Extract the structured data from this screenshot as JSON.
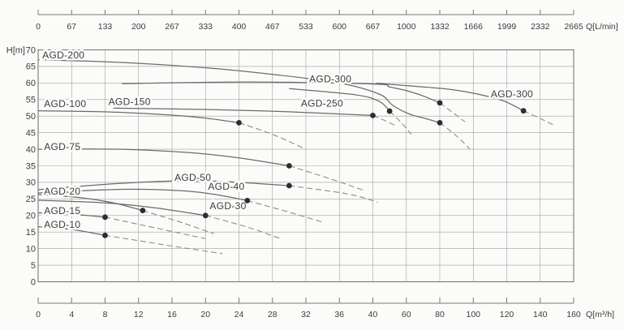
{
  "figure": {
    "bg": "#fbfbf9",
    "curve_color": "#6b6b6b",
    "dash_color": "#8c8c8c",
    "grid_color": "#9f9f9f",
    "frame_color": "#787878",
    "dot_color": "#2d2d2d",
    "text_color": "#3c3c3c"
  },
  "chart_data": {
    "type": "line",
    "title": "",
    "grid": true,
    "axes": {
      "top": {
        "unit": "Q[L/min]",
        "ticks": [
          "0",
          "67",
          "133",
          "200",
          "267",
          "333",
          "400",
          "467",
          "533",
          "600",
          "667",
          "1000",
          "1332",
          "1666",
          "1999",
          "2332",
          "2665"
        ]
      },
      "bottom": {
        "unit": "Q[m³/h]",
        "ticks": [
          "0",
          "4",
          "8",
          "12",
          "16",
          "20",
          "24",
          "28",
          "32",
          "36",
          "40",
          "60",
          "80",
          "100",
          "120",
          "140",
          "160"
        ],
        "values": [
          0,
          4,
          8,
          12,
          16,
          20,
          24,
          28,
          32,
          36,
          40,
          60,
          80,
          100,
          120,
          140,
          160
        ],
        "note": "piecewise scale: 4 m3/h per division up to 40, then 20 m3/h per division"
      },
      "left": {
        "unit": "H[m]",
        "min": 0,
        "max": 70,
        "step": 5,
        "ticks": [
          "70",
          "65",
          "60",
          "55",
          "50",
          "45",
          "40",
          "35",
          "30",
          "25",
          "20",
          "15",
          "10",
          "5",
          "0"
        ]
      }
    },
    "series": [
      {
        "id": "agd-10",
        "name": "AGD-10",
        "label_at": [
          0.7,
          17.2
        ],
        "solid": [
          [
            0,
            16.6
          ],
          [
            4,
            15.8
          ],
          [
            8,
            14
          ]
        ],
        "dashed": [
          [
            8,
            14
          ],
          [
            13,
            12
          ],
          [
            18,
            10
          ],
          [
            22,
            8.5
          ]
        ],
        "point": [
          8,
          14
        ]
      },
      {
        "id": "agd-15",
        "name": "AGD-15",
        "label_at": [
          0.7,
          21.4
        ],
        "solid": [
          [
            0,
            20.8
          ],
          [
            4,
            20.4
          ],
          [
            8,
            19.5
          ]
        ],
        "dashed": [
          [
            8,
            19.5
          ],
          [
            13,
            16.8
          ],
          [
            20,
            13
          ]
        ],
        "point": [
          8,
          19.5
        ]
      },
      {
        "id": "agd-20",
        "name": "AGD-20",
        "label_at": [
          0.7,
          27.3
        ],
        "solid": [
          [
            0,
            26.3
          ],
          [
            5,
            25.4
          ],
          [
            9,
            23.8
          ],
          [
            12.5,
            21.5
          ]
        ],
        "dashed": [
          [
            12.5,
            21.5
          ],
          [
            17,
            18
          ],
          [
            21,
            14.5
          ]
        ],
        "point": [
          12.5,
          21.5
        ]
      },
      {
        "id": "agd-30",
        "name": "AGD-30",
        "label_at": [
          20.5,
          22.9
        ],
        "solid": [
          [
            0,
            24.6
          ],
          [
            8,
            23.8
          ],
          [
            14,
            22.3
          ],
          [
            20,
            20
          ]
        ],
        "dashed": [
          [
            20,
            20
          ],
          [
            25,
            16.5
          ],
          [
            29,
            13
          ]
        ],
        "point": [
          20,
          20
        ]
      },
      {
        "id": "agd-40",
        "name": "AGD-40",
        "label_at": [
          20.3,
          28.8
        ],
        "solid": [
          [
            0,
            26.8
          ],
          [
            10,
            27.9
          ],
          [
            17,
            27.5
          ],
          [
            21,
            26.4
          ],
          [
            25,
            24.5
          ]
        ],
        "dashed": [
          [
            25,
            24.5
          ],
          [
            30,
            21
          ],
          [
            34,
            18
          ]
        ],
        "point": [
          25,
          24.5
        ]
      },
      {
        "id": "agd-50",
        "name": "AGD-50",
        "label_at": [
          16.3,
          31.5
        ],
        "solid": [
          [
            0,
            27.8
          ],
          [
            8,
            29.4
          ],
          [
            16,
            30.4
          ],
          [
            22,
            30.3
          ],
          [
            30,
            29
          ]
        ],
        "dashed": [
          [
            30,
            29
          ],
          [
            37,
            26.5
          ],
          [
            43,
            24
          ]
        ],
        "point": [
          30,
          29
        ]
      },
      {
        "id": "agd-75",
        "name": "AGD-75",
        "label_at": [
          0.7,
          40.7
        ],
        "solid": [
          [
            0,
            40
          ],
          [
            10,
            40
          ],
          [
            18,
            39
          ],
          [
            24,
            37.4
          ],
          [
            30,
            35
          ]
        ],
        "dashed": [
          [
            30,
            35
          ],
          [
            35,
            31
          ],
          [
            39,
            27.5
          ]
        ],
        "point": [
          30,
          35
        ]
      },
      {
        "id": "agd-100",
        "name": "AGD-100",
        "label_at": [
          0.7,
          53.7
        ],
        "solid": [
          [
            0,
            51.6
          ],
          [
            8,
            51.3
          ],
          [
            16,
            50.3
          ],
          [
            20,
            49.4
          ],
          [
            24,
            48
          ]
        ],
        "dashed": [
          [
            24,
            48
          ],
          [
            28,
            44.5
          ],
          [
            32,
            40
          ]
        ],
        "point": [
          24,
          48
        ]
      },
      {
        "id": "agd-150",
        "name": "AGD-150",
        "label_at": [
          8.4,
          54.3
        ],
        "solid": [
          [
            9,
            52.4
          ],
          [
            20,
            52
          ],
          [
            30,
            51.3
          ],
          [
            40,
            50.2
          ]
        ],
        "dashed": [
          [
            40,
            50.2
          ],
          [
            47,
            48.7
          ],
          [
            54,
            47
          ]
        ],
        "point": [
          40,
          50.2
        ]
      },
      {
        "id": "agd-250",
        "name": "AGD-250",
        "label_at": [
          31.4,
          53.8
        ],
        "solid": [
          [
            30,
            58.3
          ],
          [
            38,
            56.4
          ],
          [
            44,
            54.4
          ],
          [
            50,
            51.5
          ]
        ],
        "dashed": [
          [
            50,
            51.5
          ],
          [
            57,
            48
          ],
          [
            63,
            44.5
          ]
        ],
        "point": [
          50,
          51.5
        ]
      },
      {
        "id": "agd-200",
        "name": "AGD-200",
        "label_at": [
          0.5,
          68.4
        ],
        "solid": [
          [
            0,
            67
          ],
          [
            10,
            66.2
          ],
          [
            20,
            64.6
          ],
          [
            28,
            62.6
          ],
          [
            36,
            60
          ],
          [
            44,
            56.6
          ],
          [
            52,
            53.2
          ],
          [
            62,
            50.6
          ],
          [
            72,
            49.2
          ],
          [
            80,
            48
          ]
        ],
        "dashed": [
          [
            80,
            48
          ],
          [
            90,
            44
          ],
          [
            98,
            40
          ]
        ],
        "point": [
          80,
          48
        ]
      },
      {
        "id": "agd-300-a",
        "name": "AGD-300",
        "label_at": [
          32.4,
          61.2
        ],
        "solid": [
          [
            10,
            59.8
          ],
          [
            25,
            60.3
          ],
          [
            40,
            59.7
          ],
          [
            50,
            58.8
          ],
          [
            60,
            57.7
          ],
          [
            70,
            56.1
          ],
          [
            80,
            54
          ]
        ],
        "dashed": [
          [
            80,
            54
          ],
          [
            88,
            51
          ],
          [
            95,
            48.3
          ]
        ],
        "point": [
          80,
          54
        ]
      },
      {
        "id": "agd-300-b",
        "name": "AGD-300",
        "label_at": [
          110.5,
          56.7
        ],
        "solid": [
          [
            42,
            59.9
          ],
          [
            60,
            59.2
          ],
          [
            80,
            58.4
          ],
          [
            95,
            57.4
          ],
          [
            110,
            55.8
          ],
          [
            120,
            54.2
          ],
          [
            130,
            51.6
          ]
        ],
        "dashed": [
          [
            130,
            51.6
          ],
          [
            140,
            49.3
          ],
          [
            148,
            47.3
          ]
        ],
        "point": [
          130,
          51.6
        ]
      }
    ]
  }
}
